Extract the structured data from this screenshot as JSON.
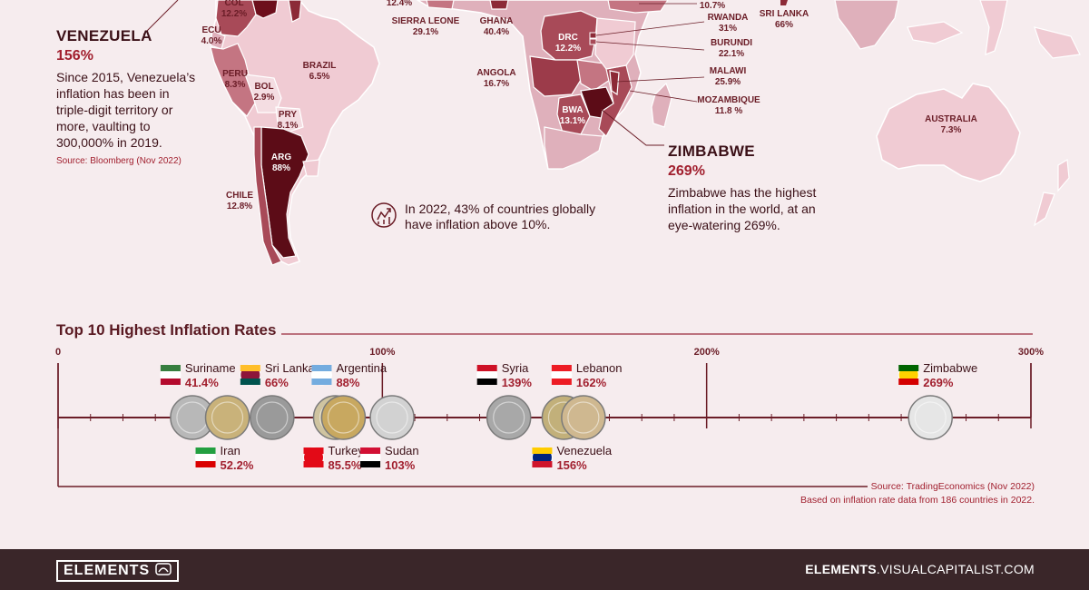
{
  "map": {
    "labels": [
      {
        "id": "col",
        "text": "COL",
        "sub": "12.2%"
      },
      {
        "id": "ecu",
        "text": "ECU",
        "sub": "4.0%"
      },
      {
        "id": "peru",
        "text": "PERU",
        "sub": "8.3%"
      },
      {
        "id": "bol",
        "text": "BOL",
        "sub": "2.9%"
      },
      {
        "id": "brazil",
        "text": "BRAZIL",
        "sub": "6.5%"
      },
      {
        "id": "pry",
        "text": "PRY",
        "sub": "8.1%"
      },
      {
        "id": "arg",
        "text": "ARG",
        "sub": "88%"
      },
      {
        "id": "chile",
        "text": "CHILE",
        "sub": "12.8%"
      },
      {
        "id": "top-edge",
        "text": "12.4%",
        "sub": ""
      },
      {
        "id": "sierra-leone",
        "text": "SIERRA LEONE",
        "sub": "29.1%"
      },
      {
        "id": "ghana",
        "text": "GHANA",
        "sub": "40.4%"
      },
      {
        "id": "angola",
        "text": "ANGOLA",
        "sub": "16.7%"
      },
      {
        "id": "drc",
        "text": "DRC",
        "sub": "12.2%"
      },
      {
        "id": "bwa",
        "text": "BWA",
        "sub": "13.1%"
      },
      {
        "id": "top-africa",
        "text": "10.7%",
        "sub": ""
      },
      {
        "id": "rwanda",
        "text": "RWANDA",
        "sub": "31%"
      },
      {
        "id": "burundi",
        "text": "BURUNDI",
        "sub": "22.1%"
      },
      {
        "id": "malawi",
        "text": "MALAWI",
        "sub": "25.9%"
      },
      {
        "id": "mozambique",
        "text": "MOZAMBIQUE",
        "sub": "11.8 %"
      },
      {
        "id": "sri-lanka",
        "text": "SRI LANKA",
        "sub": "66%"
      },
      {
        "id": "australia",
        "text": "AUSTRALIA",
        "sub": "7.3%"
      }
    ]
  },
  "venezuela": {
    "name": "VENEZUELA",
    "value": "156%",
    "text": "Since 2015, Venezuela’s inflation has been in triple-digit territory or more, vaulting to 300,000% in 2019.",
    "source": "Source: Bloomberg (Nov 2022)"
  },
  "zimbabwe": {
    "name": "ZIMBABWE",
    "value": "269%",
    "text": "Zimbabwe has the highest inflation in the world, at an eye-watering 269%."
  },
  "note": {
    "text": "In 2022, 43% of countries globally have inflation above 10%."
  },
  "colors": {
    "accent": "#a11f2e",
    "dark": "#6d0f1c",
    "light": "#eecfd6",
    "background": "#f6ecee",
    "footer": "#3a2629"
  },
  "chart_data": {
    "type": "scatter",
    "title": "Top 10 Highest Inflation Rates",
    "xlim": [
      0,
      300
    ],
    "ticks": [
      {
        "value": 0,
        "label": "0"
      },
      {
        "value": 100,
        "label": "100%"
      },
      {
        "value": 200,
        "label": "200%"
      },
      {
        "value": 300,
        "label": "300%"
      }
    ],
    "points": [
      {
        "name": "Suriname",
        "value": 41.4,
        "label": "41.4%",
        "pos": "above"
      },
      {
        "name": "Iran",
        "value": 52.2,
        "label": "52.2%",
        "pos": "below"
      },
      {
        "name": "Sri Lanka",
        "value": 66,
        "label": "66%",
        "pos": "above"
      },
      {
        "name": "Turkey",
        "value": 85.5,
        "label": "85.5%",
        "pos": "below"
      },
      {
        "name": "Argentina",
        "value": 88,
        "label": "88%",
        "pos": "above"
      },
      {
        "name": "Sudan",
        "value": 103,
        "label": "103%",
        "pos": "below"
      },
      {
        "name": "Syria",
        "value": 139,
        "label": "139%",
        "pos": "above"
      },
      {
        "name": "Venezuela",
        "value": 156,
        "label": "156%",
        "pos": "below"
      },
      {
        "name": "Lebanon",
        "value": 162,
        "label": "162%",
        "pos": "above"
      },
      {
        "name": "Zimbabwe",
        "value": 269,
        "label": "269%",
        "pos": "above"
      }
    ]
  },
  "sources": {
    "line1": "Source: TradingEconomics (Nov 2022)",
    "line2": "Based on inflation rate data from 186 countries in 2022."
  },
  "footer": {
    "logo": "ELEMENTS",
    "site_bold": "ELEMENTS",
    "site_rest": ".VISUALCAPITALIST.COM"
  }
}
